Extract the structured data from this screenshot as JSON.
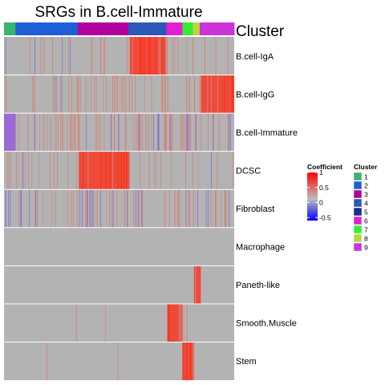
{
  "chart_data": {
    "type": "heatmap",
    "title": "SRGs in B.cell-Immature",
    "annotation_title": "Cluster",
    "rows": [
      "B.cell-IgA",
      "B.cell-IgG",
      "B.cell-Immature",
      "DCSC",
      "Fibroblast",
      "Macrophage",
      "Paneth-like",
      "Smooth.Muscle",
      "Stem"
    ],
    "column_clusters": [
      {
        "name": "1",
        "color": "#3cb371",
        "fraction": 0.05
      },
      {
        "name": "2",
        "color": "#1f5fd6",
        "fraction": 0.27
      },
      {
        "name": "3",
        "color": "#b0009b",
        "fraction": 0.22
      },
      {
        "name": "4",
        "color": "#2a57b8",
        "fraction": 0.165
      },
      {
        "name": "6",
        "color": "#e31ed6",
        "fraction": 0.07
      },
      {
        "name": "7",
        "color": "#33ee33",
        "fraction": 0.045
      },
      {
        "name": "8",
        "color": "#b8d63c",
        "fraction": 0.03
      },
      {
        "name": "9",
        "color": "#cc33d9",
        "fraction": 0.15
      }
    ],
    "legend_clusters": [
      {
        "name": "1",
        "color": "#3cb371"
      },
      {
        "name": "2",
        "color": "#1f5fd6"
      },
      {
        "name": "3",
        "color": "#b0009b"
      },
      {
        "name": "4",
        "color": "#2a57b8"
      },
      {
        "name": "5",
        "color": "#1a2f8c"
      },
      {
        "name": "6",
        "color": "#e31ed6"
      },
      {
        "name": "7",
        "color": "#33ee33"
      },
      {
        "name": "8",
        "color": "#b8d63c"
      },
      {
        "name": "9",
        "color": "#cc33d9"
      }
    ],
    "high_blocks": [
      {
        "row": "B.cell-IgA",
        "x_start": 0.545,
        "x_end": 0.705
      },
      {
        "row": "B.cell-IgG",
        "x_start": 0.855,
        "x_end": 1.0
      },
      {
        "row": "DCSC",
        "x_start": 0.325,
        "x_end": 0.545
      },
      {
        "row": "Paneth-like",
        "x_start": 0.825,
        "x_end": 0.855
      },
      {
        "row": "Smooth.Muscle",
        "x_start": 0.71,
        "x_end": 0.775
      },
      {
        "row": "Stem",
        "x_start": 0.775,
        "x_end": 0.825
      }
    ],
    "low_blocks": [
      {
        "row": "B.cell-Immature",
        "x_start": 0.0,
        "x_end": 0.05
      }
    ],
    "coefficient_legend": {
      "title": "Coefficient",
      "ticks": [
        "1",
        "0.5",
        "0",
        "-0.5"
      ],
      "range": [
        -0.6,
        1.0
      ],
      "colors": {
        "high": "#ff0000",
        "mid": "#bebebe",
        "low": "#0000ff",
        "background": "#b3b3b3"
      }
    },
    "cluster_legend_title": "Cluster",
    "xlabel": "",
    "ylabel": ""
  }
}
